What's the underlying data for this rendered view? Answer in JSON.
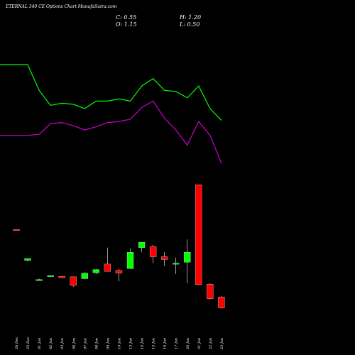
{
  "header": {
    "title": "ETERNAL 340 CE Options Chart MunafaSutra.com",
    "open": "O: 1.15",
    "close": "C: 0.55",
    "high": "H: 1.20",
    "low": "L: 0.50"
  },
  "colors": {
    "background": "#000000",
    "up": "#00ff00",
    "down": "#ff0000",
    "line1": "#00ff00",
    "line2": "#cc00cc",
    "text": "#ffffff"
  },
  "chart_data": {
    "type": "candlestick",
    "x": [
      "26 Dec",
      "23 Dec",
      "01 Jan",
      "02 Jan",
      "03 Jan",
      "06 Jan",
      "07 Jan",
      "08 Jan",
      "09 Jan",
      "10 Jan",
      "13 Jan",
      "14 Jan",
      "15 Jan",
      "16 Jan",
      "17 Jan",
      "20 Jan",
      "21 Jan",
      "22 Jan",
      "23 Jan"
    ],
    "candles": [
      {
        "o": 4.85,
        "h": 4.86,
        "l": 4.83,
        "c": 4.84
      },
      {
        "o": 3.15,
        "h": 3.22,
        "l": 3.1,
        "c": 3.25
      },
      {
        "o": 2.08,
        "h": 2.15,
        "l": 2.05,
        "c": 2.1
      },
      {
        "o": 2.3,
        "h": 2.33,
        "l": 2.27,
        "c": 2.32
      },
      {
        "o": 2.28,
        "h": 2.3,
        "l": 2.18,
        "c": 2.2
      },
      {
        "o": 2.25,
        "h": 2.27,
        "l": 1.7,
        "c": 1.78
      },
      {
        "o": 2.15,
        "h": 2.5,
        "l": 2.12,
        "c": 2.45
      },
      {
        "o": 2.47,
        "h": 2.68,
        "l": 2.4,
        "c": 2.65
      },
      {
        "o": 2.95,
        "h": 3.85,
        "l": 2.6,
        "c": 2.55
      },
      {
        "o": 2.6,
        "h": 2.7,
        "l": 2.0,
        "c": 2.45
      },
      {
        "o": 2.7,
        "h": 3.8,
        "l": 2.7,
        "c": 3.6
      },
      {
        "o": 3.85,
        "h": 4.1,
        "l": 3.6,
        "c": 4.15
      },
      {
        "o": 3.9,
        "h": 4.0,
        "l": 3.0,
        "c": 3.35
      },
      {
        "o": 3.35,
        "h": 3.62,
        "l": 2.85,
        "c": 3.2
      },
      {
        "o": 2.95,
        "h": 3.3,
        "l": 2.4,
        "c": 3.0
      },
      {
        "o": 3.05,
        "h": 4.3,
        "l": 1.9,
        "c": 3.6
      },
      {
        "o": 7.3,
        "h": 7.3,
        "l": 1.8,
        "c": 1.82
      },
      {
        "o": 1.85,
        "h": 1.9,
        "l": 1.0,
        "c": 1.05
      },
      {
        "o": 1.15,
        "h": 1.2,
        "l": 0.5,
        "c": 0.55
      }
    ],
    "upper_lines": [
      {
        "color": "#00ff00",
        "values": [
          9.5,
          9.5,
          8.3,
          7.6,
          7.7,
          7.65,
          7.45,
          7.8,
          7.8,
          7.9,
          7.8,
          8.5,
          8.85,
          8.3,
          8.25,
          7.95,
          8.5,
          7.45,
          6.9
        ]
      },
      {
        "color": "#cc00cc",
        "values": [
          6.2,
          6.2,
          6.25,
          6.75,
          6.8,
          6.65,
          6.45,
          6.6,
          6.8,
          6.85,
          6.95,
          7.5,
          7.8,
          7.0,
          6.45,
          5.75,
          6.85,
          6.2,
          4.9
        ]
      }
    ]
  }
}
